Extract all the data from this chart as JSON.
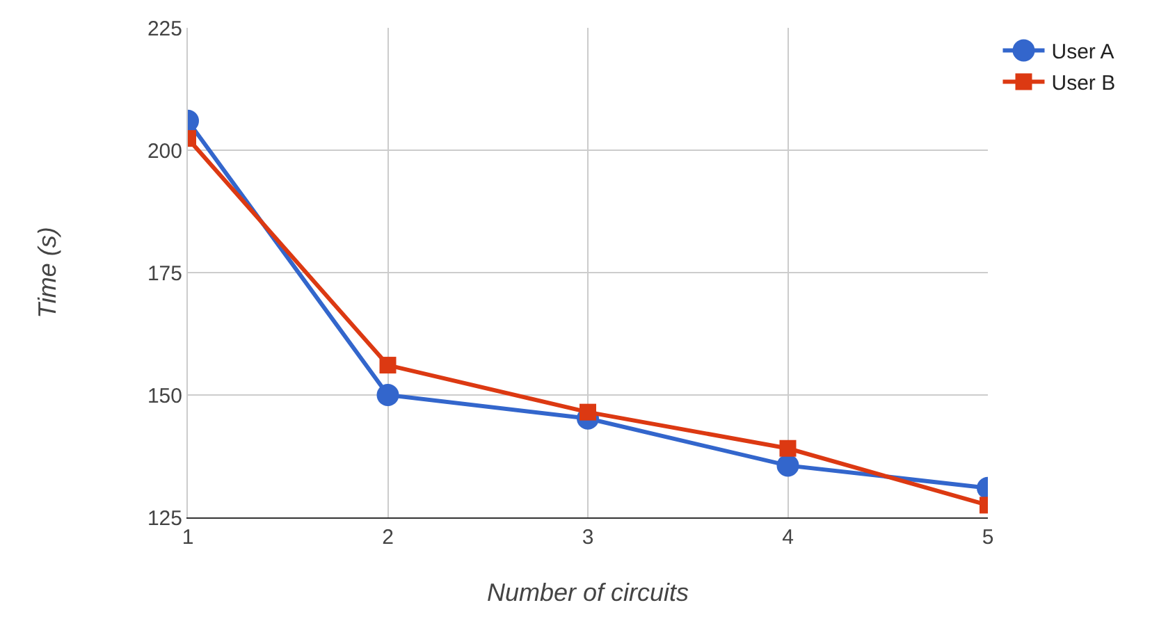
{
  "chart_data": {
    "type": "line",
    "xlabel": "Number of circuits",
    "ylabel": "Time (s)",
    "x": [
      1,
      2,
      3,
      4,
      5
    ],
    "series": [
      {
        "name": "User A",
        "color": "#3366cc",
        "marker": "circle",
        "values": [
          206,
          150,
          145.2,
          135.6,
          131
        ]
      },
      {
        "name": "User B",
        "color": "#dc3912",
        "marker": "square",
        "values": [
          202.4,
          156.1,
          146.5,
          139.1,
          127.5
        ]
      }
    ],
    "xlim": [
      1,
      5
    ],
    "xticks": [
      1,
      2,
      3,
      4,
      5
    ],
    "ylim": [
      125,
      225
    ],
    "yticks": [
      125,
      150,
      175,
      200,
      225
    ],
    "grid": true,
    "legend": "top right"
  }
}
